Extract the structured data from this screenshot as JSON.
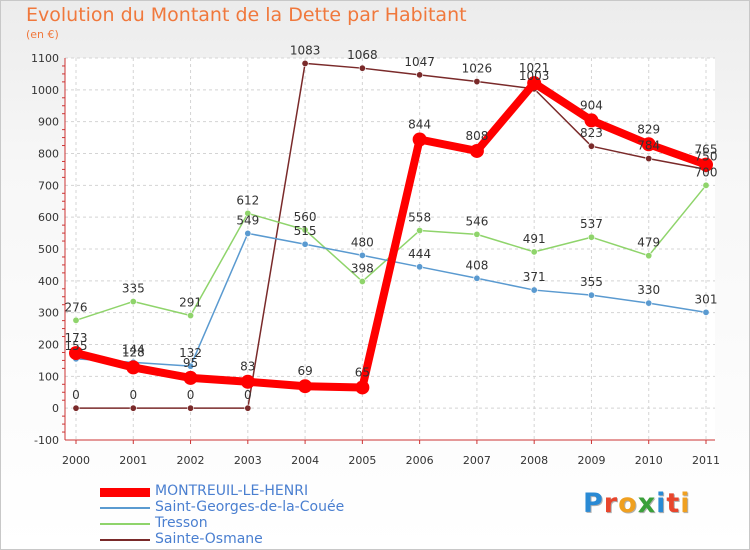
{
  "title": "Evolution du Montant de la Dette par Habitant",
  "unit": "(en €)",
  "logo": {
    "text": "Proxiti",
    "letter_colors": [
      "#2a8ad4",
      "#e8452c",
      "#f0a020",
      "#3aa03a",
      "#2a8ad4",
      "#e8452c",
      "#f0a020"
    ]
  },
  "chart_data": {
    "type": "line",
    "x": [
      "2000",
      "2001",
      "2002",
      "2003",
      "2004",
      "2005",
      "2006",
      "2007",
      "2008",
      "2009",
      "2010",
      "2011"
    ],
    "ylim": [
      -100,
      1100
    ],
    "yticks": [
      "-100",
      "0",
      "100",
      "200",
      "300",
      "400",
      "500",
      "600",
      "700",
      "800",
      "900",
      "1000",
      "1100"
    ],
    "grid": true,
    "legend_position": "bottom-left",
    "series": [
      {
        "name": "Sainte-Osmane",
        "color": "#7a2a2a",
        "values": [
          0,
          0,
          0,
          0,
          1083,
          1068,
          1047,
          1026,
          1003,
          823,
          784,
          750
        ],
        "labels": [
          "0",
          "0",
          "0",
          "0",
          "1083",
          "1068",
          "1047",
          "1026",
          "1003",
          "823",
          "784",
          "750"
        ]
      },
      {
        "name": "Tresson",
        "color": "#8fd46b",
        "values": [
          276,
          335,
          291,
          612,
          560,
          398,
          558,
          546,
          491,
          537,
          479,
          700
        ],
        "labels": [
          "276",
          "335",
          "291",
          "612",
          "560",
          "398",
          "558",
          "546",
          "491",
          "537",
          "479",
          "700"
        ]
      },
      {
        "name": "Saint-Georges-de-la-Couée",
        "color": "#5a9ad0",
        "values": [
          155,
          144,
          132,
          549,
          515,
          480,
          444,
          408,
          371,
          355,
          330,
          301
        ],
        "labels": [
          "155",
          "144",
          "132",
          "549",
          "515",
          "480",
          "444",
          "408",
          "371",
          "355",
          "330",
          "301"
        ]
      },
      {
        "name": "MONTREUIL-LE-HENRI",
        "color": "#ff0000",
        "values": [
          173,
          128,
          95,
          83,
          69,
          65,
          844,
          808,
          1021,
          904,
          829,
          765
        ],
        "labels": [
          "173",
          "128",
          "95",
          "83",
          "69",
          "65",
          "844",
          "808",
          "1021",
          "904",
          "829",
          "765"
        ]
      }
    ],
    "legend": [
      {
        "name": "MONTREUIL-LE-HENRI",
        "color": "#ff0000",
        "text_color": "#4a7fd0"
      },
      {
        "name": "Saint-Georges-de-la-Couée",
        "color": "#5a9ad0",
        "text_color": "#4a7fd0"
      },
      {
        "name": "Tresson",
        "color": "#8fd46b",
        "text_color": "#4a7fd0"
      },
      {
        "name": "Sainte-Osmane",
        "color": "#7a2a2a",
        "text_color": "#4a7fd0"
      }
    ]
  }
}
